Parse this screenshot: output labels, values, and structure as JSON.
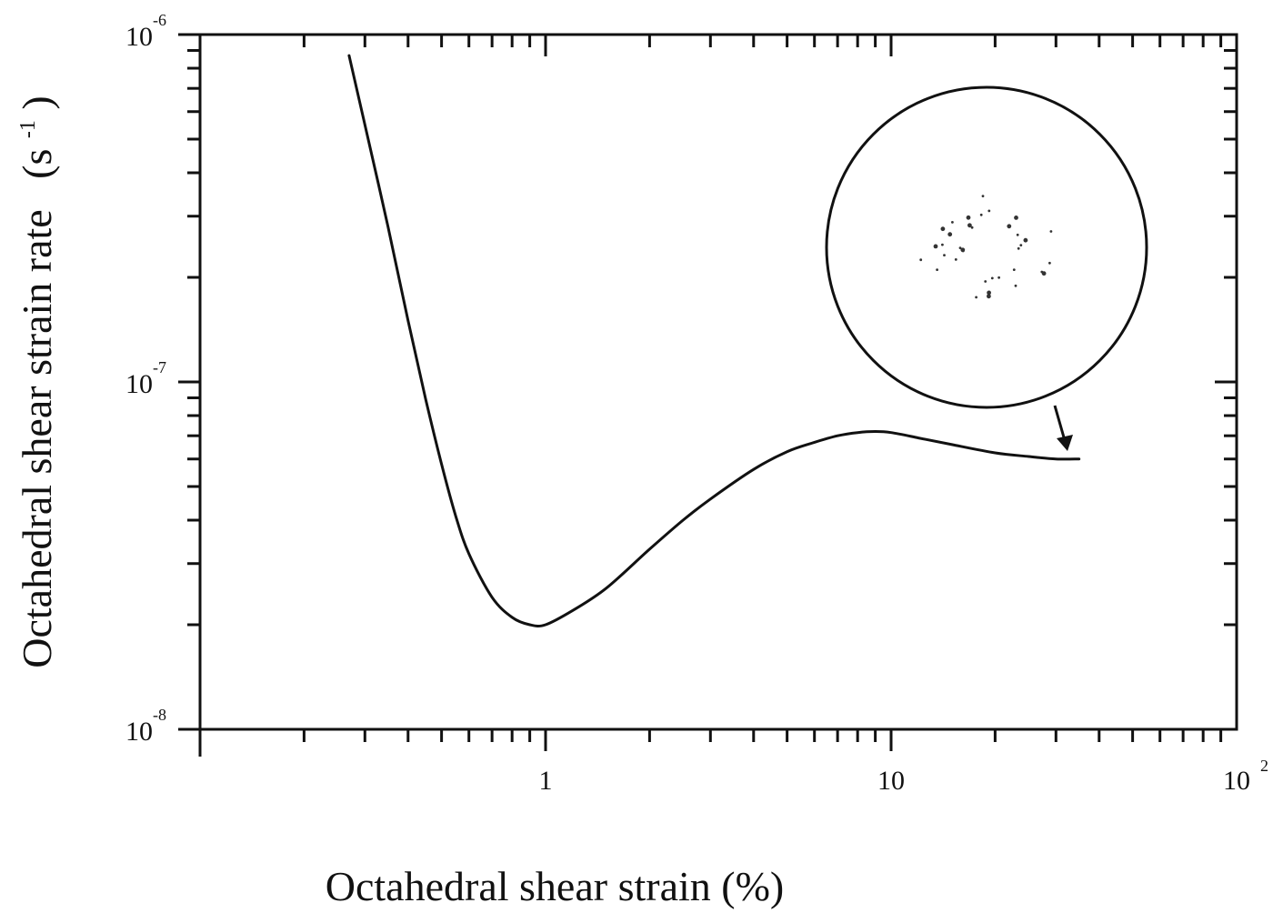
{
  "chart_data": {
    "type": "line",
    "xlabel": "Octahedral shear strain (%)",
    "ylabel": "Octahedral shear strain rate",
    "ylabel_unit_base": "(s",
    "ylabel_unit_exp": "-1",
    "ylabel_unit_close": ")",
    "x_scale": "log",
    "y_scale": "log",
    "xlim": [
      0.1,
      100
    ],
    "ylim": [
      1e-08,
      1e-06
    ],
    "x_ticks": [
      {
        "value": 1,
        "base": "1",
        "exp": ""
      },
      {
        "value": 10,
        "base": "10",
        "exp": ""
      },
      {
        "value": 100,
        "base": "10",
        "exp": "2"
      }
    ],
    "y_ticks": [
      {
        "value": 1e-08,
        "base": "10",
        "exp": "-8"
      },
      {
        "value": 1e-07,
        "base": "10",
        "exp": "-7"
      },
      {
        "value": 1e-06,
        "base": "10",
        "exp": "-6"
      }
    ],
    "grid": false,
    "series": [
      {
        "x": [
          0.27,
          0.3,
          0.35,
          0.4,
          0.45,
          0.5,
          0.55,
          0.6,
          0.7,
          0.8,
          0.9,
          1.0,
          1.2,
          1.5,
          2.0,
          2.5,
          3.0,
          4.0,
          5.0,
          6.0,
          7.0,
          8.0,
          9.0,
          10.0,
          12.0,
          15.0,
          20.0,
          25.0,
          30.0,
          35.0
        ],
        "y": [
          8.7e-07,
          5.5e-07,
          2.8e-07,
          1.5e-07,
          8.9e-08,
          5.8e-08,
          4.1e-08,
          3.2e-08,
          2.4e-08,
          2.1e-08,
          2e-08,
          2e-08,
          2.2e-08,
          2.55e-08,
          3.3e-08,
          4e-08,
          4.6e-08,
          5.6e-08,
          6.3e-08,
          6.7e-08,
          7e-08,
          7.15e-08,
          7.2e-08,
          7.15e-08,
          6.9e-08,
          6.6e-08,
          6.25e-08,
          6.1e-08,
          6e-08,
          6e-08
        ]
      }
    ],
    "inset": {
      "type": "fabric-diagram",
      "point_count": 36
    }
  }
}
